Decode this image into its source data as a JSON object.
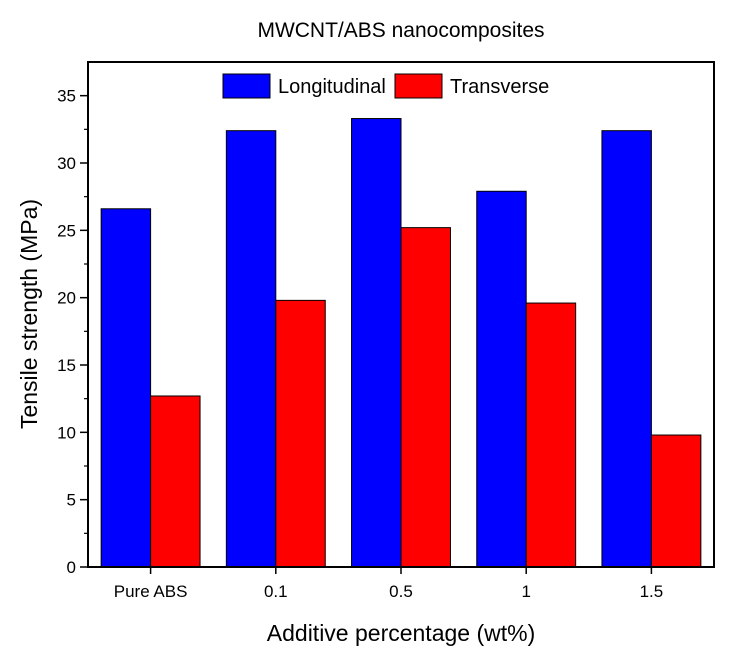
{
  "chart_data": {
    "type": "bar",
    "title": "MWCNT/ABS nanocomposites",
    "xlabel": "Additive percentage (wt%)",
    "ylabel": "Tensile strength (MPa)",
    "categories": [
      "Pure ABS",
      "0.1",
      "0.5",
      "1",
      "1.5"
    ],
    "series": [
      {
        "name": "Longitudinal",
        "color": "#0000ff",
        "values": [
          26.6,
          32.4,
          33.3,
          27.9,
          32.4
        ]
      },
      {
        "name": "Transverse",
        "color": "#ff0000",
        "values": [
          12.7,
          19.8,
          25.2,
          19.6,
          9.8
        ]
      }
    ],
    "ylim": [
      0,
      37.5
    ],
    "yticks": [
      0,
      5,
      10,
      15,
      20,
      25,
      30,
      35
    ],
    "yticklabels": [
      "0",
      "5",
      "10",
      "15",
      "20",
      "25",
      "30",
      "35"
    ],
    "grid": false,
    "legend": "top-center"
  }
}
